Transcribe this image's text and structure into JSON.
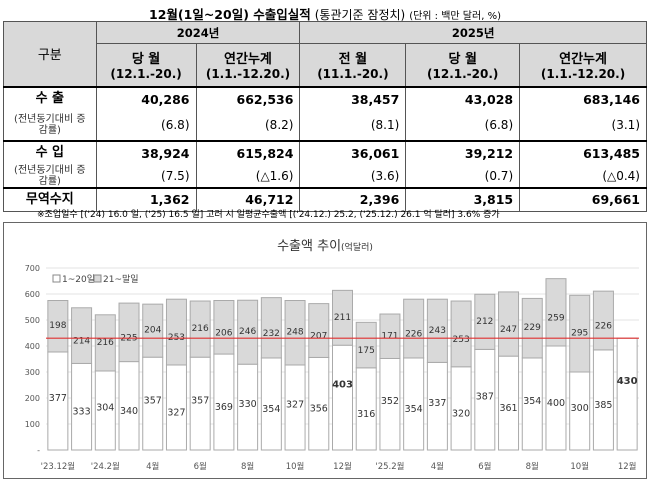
{
  "header": {
    "title": "12월(1일~20일) 수출입실적",
    "subtitle": "(통관기준 잠정치)",
    "unit": "(단위 : 백만 달러, %)"
  },
  "table": {
    "corner": "구분",
    "years": [
      "2024년",
      "2025년"
    ],
    "columns": [
      {
        "name": "당 월",
        "range": "(12.1.-20.)"
      },
      {
        "name": "연간누계",
        "range": "(1.1.-12.20.)"
      },
      {
        "name": "전 월",
        "range": "(11.1.-20.)"
      },
      {
        "name": "당 월",
        "range": "(12.1.-20.)"
      },
      {
        "name": "연간누계",
        "range": "(1.1.-12.20.)"
      }
    ],
    "rows": [
      {
        "label": "수 출",
        "sublabel": "(전년동기대비 증감률)",
        "values": [
          "40,286",
          "662,536",
          "38,457",
          "43,028",
          "683,146"
        ],
        "rates": [
          "(6.8)",
          "(8.2)",
          "(8.1)",
          "(6.8)",
          "(3.1)"
        ]
      },
      {
        "label": "수 입",
        "sublabel": "(전년동기대비 증감률)",
        "values": [
          "38,924",
          "615,824",
          "36,061",
          "39,212",
          "613,485"
        ],
        "rates": [
          "(7.5)",
          "(△1.6)",
          "(3.6)",
          "(0.7)",
          "(△0.4)"
        ]
      },
      {
        "label": "무역수지",
        "values": [
          "1,362",
          "46,712",
          "2,396",
          "3,815",
          "69,661"
        ]
      }
    ]
  },
  "note": "※조업일수 [('24) 16.0 일, ('25) 16.5 일] 고려 시 일평균수출액 [('24.12.) 25.2, ('25.12.) 26.1 억 달러] 3.6% 증가",
  "chart_data": {
    "type": "bar",
    "stacked": true,
    "title": "수출액 추이",
    "title_unit": "(억달러)",
    "categories": [
      "'23.12월",
      "",
      "'24.2월",
      "",
      "4월",
      "",
      "6월",
      "",
      "8월",
      "",
      "10월",
      "",
      "12월",
      "",
      "'25.2월",
      "",
      "4월",
      "",
      "6월",
      "",
      "8월",
      "",
      "10월",
      "",
      "12월"
    ],
    "series": [
      {
        "name": "1~20일",
        "color": "#ffffff",
        "values": [
          377,
          333,
          304,
          340,
          357,
          327,
          357,
          369,
          330,
          354,
          327,
          356,
          403,
          316,
          352,
          354,
          337,
          320,
          387,
          361,
          354,
          400,
          300,
          385,
          430
        ]
      },
      {
        "name": "21~말일",
        "color": "#d9d9d9",
        "values": [
          198,
          214,
          216,
          225,
          204,
          253,
          216,
          206,
          246,
          232,
          248,
          207,
          211,
          175,
          171,
          226,
          243,
          253,
          212,
          247,
          229,
          259,
          295,
          226,
          null
        ]
      }
    ],
    "highlight_labels": [
      403,
      430
    ],
    "reference_line": {
      "value": 430,
      "color": "#e03030"
    },
    "ylim": [
      0,
      700
    ],
    "yticks": [
      "-",
      "100",
      "200",
      "300",
      "400",
      "500",
      "600",
      "700"
    ],
    "grid": true,
    "legend": "top-left"
  }
}
